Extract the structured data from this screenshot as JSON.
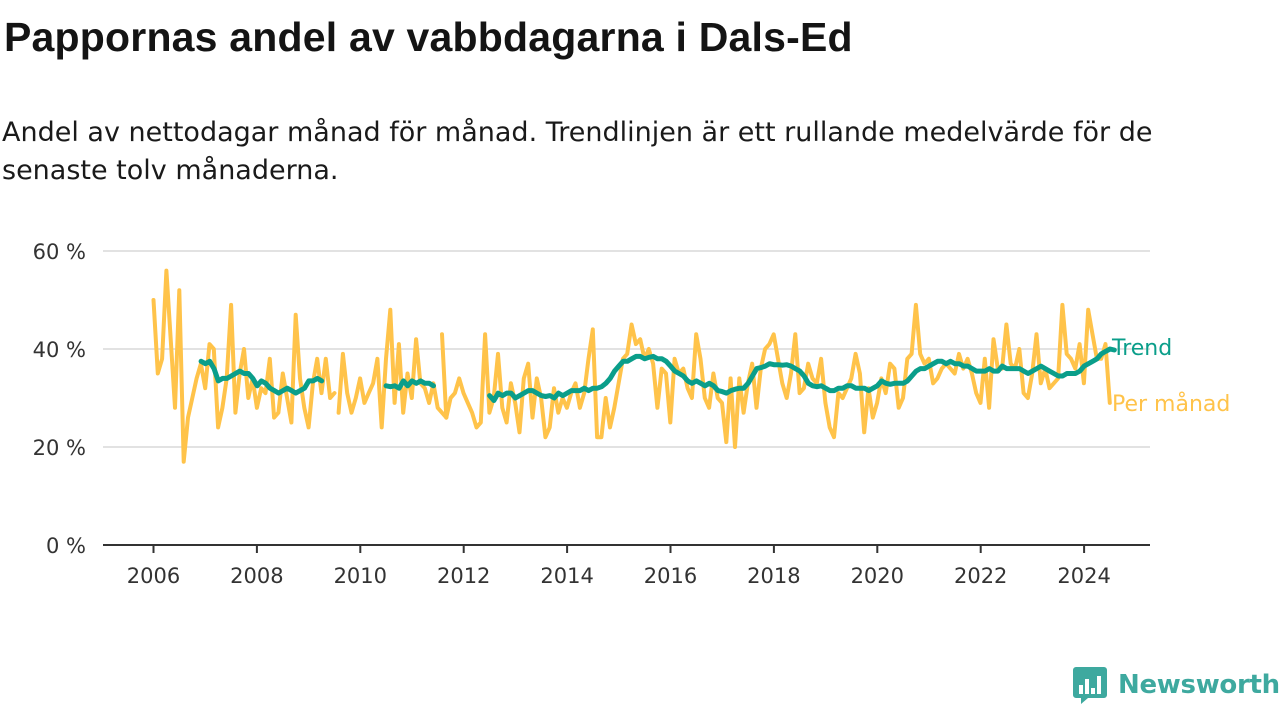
{
  "title": "Pappornas andel av vabbdagarna i Dals-Ed",
  "subtitle": "Andel av nettodagar månad för månad. Trendlinjen är ett rullande medelvärde för de senaste tolv månaderna.",
  "brand": {
    "name": "Newsworthy",
    "icon": "bar-chart-speech-bubble-icon",
    "color": "#3ea99f"
  },
  "colors": {
    "monthly": "#ffc34a",
    "trend": "#0a9e8a",
    "grid": "#d9d9d9",
    "axis": "#333333"
  },
  "chart_data": {
    "type": "line",
    "xlim": [
      2005.2,
      2025.2
    ],
    "ylim": [
      0,
      60
    ],
    "y_ticks": [
      0,
      20,
      40,
      60
    ],
    "y_tick_labels": [
      "0 %",
      "20 %",
      "40 %",
      "60 %"
    ],
    "x_ticks": [
      2006,
      2008,
      2010,
      2012,
      2014,
      2016,
      2018,
      2020,
      2022,
      2024
    ],
    "x_tick_labels": [
      "2006",
      "2008",
      "2010",
      "2012",
      "2014",
      "2016",
      "2018",
      "2020",
      "2022",
      "2024"
    ],
    "grid": true,
    "legend": "inline labels at line ends (right)",
    "series": [
      {
        "name": "Per månad",
        "color": "#ffc34a",
        "segments": [
          {
            "x_start": 2006.0,
            "values": [
              50,
              35,
              38,
              56,
              42,
              28,
              52,
              17,
              26,
              30,
              34,
              37,
              32,
              41,
              40,
              24,
              28,
              34,
              49,
              27,
              35,
              40,
              30,
              34,
              28,
              32,
              31,
              38,
              26,
              27,
              35,
              30,
              25,
              47,
              34,
              28,
              24,
              33,
              38,
              31,
              38,
              30,
              31
            ]
          },
          {
            "x_start": 2009.58,
            "values": [
              27,
              39,
              31,
              27,
              30,
              34,
              29,
              31,
              33,
              38,
              24,
              38,
              48,
              29,
              41,
              27,
              35,
              30,
              42,
              33,
              32,
              29,
              33,
              28,
              27,
              26
            ]
          },
          {
            "x_start": 2011.58,
            "values": [
              43,
              26,
              30,
              31,
              34,
              31,
              29,
              27,
              24,
              25,
              43,
              27,
              30,
              39,
              28,
              25,
              33,
              29,
              23,
              34,
              37,
              26,
              34,
              30,
              22,
              24,
              32,
              27,
              30,
              28,
              31,
              33,
              28,
              31,
              38,
              44,
              22,
              22,
              30,
              24,
              28,
              33,
              38,
              39,
              45,
              41,
              42,
              38,
              40,
              37,
              28,
              36,
              35,
              25,
              38,
              35,
              36,
              32,
              30,
              43,
              38,
              30,
              28,
              35,
              30,
              29,
              21,
              34,
              20,
              34,
              27,
              33,
              37,
              28,
              36,
              40,
              41,
              43,
              38,
              33,
              30,
              35,
              43,
              31,
              32,
              37,
              34,
              33,
              38,
              29,
              24,
              22,
              31,
              30,
              32,
              34,
              39,
              35,
              23,
              32,
              26,
              29,
              34,
              31,
              37,
              36,
              28,
              30,
              38,
              39,
              49,
              39,
              37,
              38,
              33,
              34,
              36,
              37,
              36,
              35,
              39,
              36,
              38,
              35,
              31,
              29,
              38,
              28,
              42,
              36,
              36,
              45,
              37,
              36,
              40,
              31,
              30,
              35,
              43,
              33,
              36,
              32,
              33,
              34,
              49,
              39,
              38,
              36,
              41,
              33,
              48,
              43,
              38,
              38,
              41,
              29
            ]
          }
        ]
      },
      {
        "name": "Trend",
        "color": "#0a9e8a",
        "segments": [
          {
            "x_start": 2006.92,
            "values": [
              37.5,
              37.0,
              37.5,
              36.0,
              33.5,
              34.0,
              34.0,
              34.5,
              35.0,
              35.5,
              35.0,
              35.0,
              34.0,
              32.5,
              33.5,
              33.0,
              32.0,
              31.5,
              31.0,
              31.5,
              32.0,
              31.5,
              31.0,
              31.5,
              32.0,
              33.5,
              33.5,
              34.0,
              33.5
            ]
          },
          {
            "x_start": 2010.5,
            "values": [
              32.5,
              32.3,
              32.5,
              32.0,
              33.5,
              32.5,
              33.5,
              33.0,
              33.5,
              33.0,
              33.0,
              32.5
            ]
          },
          {
            "x_start": 2012.5,
            "values": [
              30.5,
              29.5,
              31.0,
              30.5,
              31.0,
              31.0,
              30.0,
              30.5,
              31.0,
              31.5,
              31.5,
              31.0,
              30.5,
              30.3,
              30.5,
              30.0,
              31.0,
              30.5,
              31.0,
              31.5,
              31.5,
              31.5,
              32.0,
              31.5,
              32.0,
              32.0,
              32.3,
              33.0,
              34.0,
              35.5,
              36.5,
              37.5,
              37.5,
              38.0,
              38.5,
              38.5,
              38.0,
              38.3,
              38.5,
              38.0,
              38.0,
              37.5,
              36.5,
              35.5,
              35.0,
              34.5,
              33.5,
              33.0,
              33.5,
              33.0,
              32.5,
              33.0,
              32.5,
              31.5,
              31.3,
              31.0,
              31.5,
              31.8,
              32.0,
              32.0,
              33.0,
              34.5,
              36.0,
              36.2,
              36.5,
              37.0,
              36.8,
              36.8,
              36.7,
              36.8,
              36.5,
              36.0,
              35.5,
              34.5,
              33.0,
              32.5,
              32.3,
              32.5,
              32.0,
              31.5,
              31.5,
              32.0,
              32.0,
              32.5,
              32.5,
              32.0,
              32.0,
              32.0,
              31.5,
              32.0,
              32.5,
              33.5,
              33.0,
              32.8,
              33.0,
              33.0,
              33.0,
              33.5,
              34.5,
              35.5,
              36.0,
              36.0,
              36.5,
              37.0,
              37.5,
              37.5,
              37.0,
              37.5,
              37.0,
              37.0,
              36.5,
              36.5,
              36.0,
              35.5,
              35.5,
              35.5,
              36.0,
              35.5,
              35.5,
              36.5,
              36.0,
              36.0,
              36.0,
              36.0,
              35.5,
              35.0,
              35.5,
              36.0,
              36.5,
              36.0,
              35.5,
              35.0,
              34.5,
              34.5,
              35.0,
              35.0,
              35.0,
              35.5,
              36.5,
              37.0,
              37.5,
              38.0,
              39.0,
              39.5,
              40.0,
              39.8
            ]
          }
        ]
      }
    ]
  }
}
